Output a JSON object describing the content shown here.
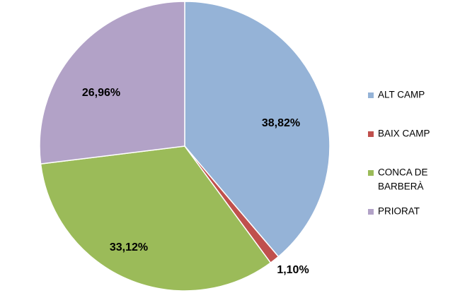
{
  "chart_data": {
    "type": "pie",
    "start_angle_deg": 0,
    "direction": "clockwise",
    "legend_position": "right",
    "data_labels": "percent",
    "slices": [
      {
        "name": "ALT CAMP",
        "value": 38.82,
        "label": "38,82%",
        "color": "#95b3d7",
        "legend_lines": [
          "ALT CAMP"
        ]
      },
      {
        "name": "BAIX CAMP",
        "value": 1.1,
        "label": "1,10%",
        "color": "#c0504d",
        "legend_lines": [
          "BAIX CAMP"
        ]
      },
      {
        "name": "CONCA DE BARBERÀ",
        "value": 33.12,
        "label": "33,12%",
        "color": "#9bbb59",
        "legend_lines": [
          "CONCA DE",
          "BARBERÀ"
        ]
      },
      {
        "name": "PRIORAT",
        "value": 26.96,
        "label": "26,96%",
        "color": "#b2a2c7",
        "legend_lines": [
          "PRIORAT"
        ]
      }
    ]
  }
}
